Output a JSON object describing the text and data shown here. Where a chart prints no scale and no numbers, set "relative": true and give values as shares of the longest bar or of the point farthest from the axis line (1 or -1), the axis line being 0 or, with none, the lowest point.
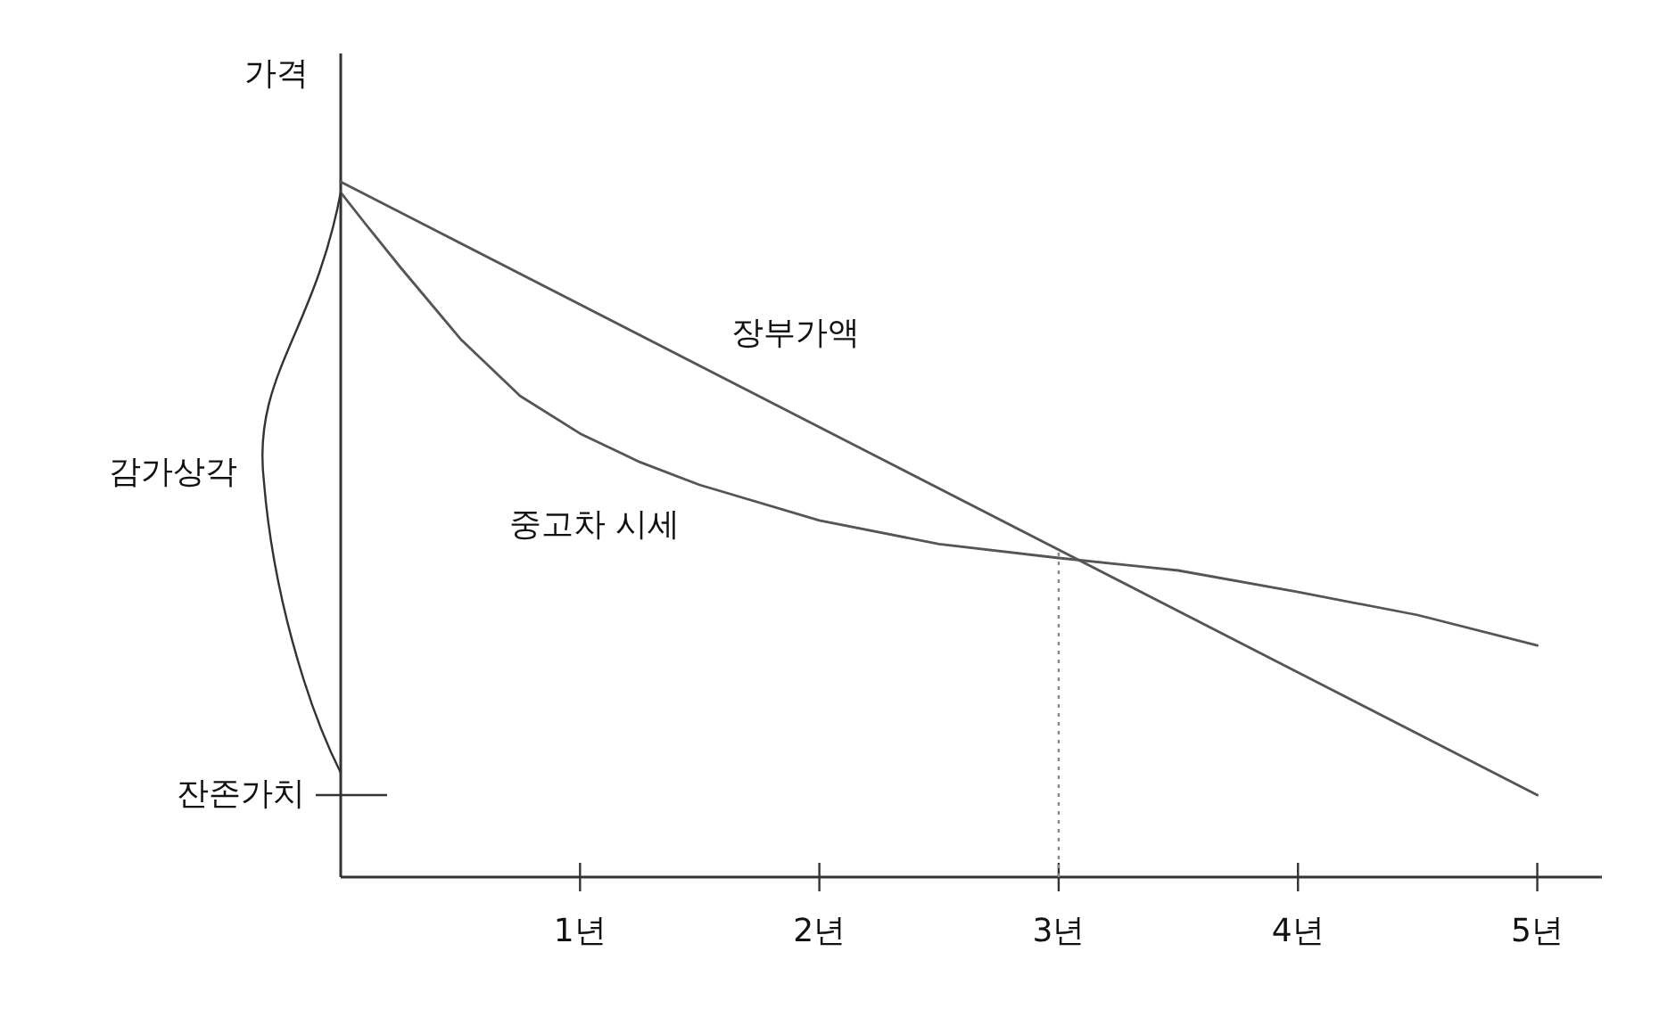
{
  "chart_data": {
    "type": "line",
    "relative": true,
    "ylabel": "가격",
    "marker": "none",
    "line_style": "solid",
    "xlim": [
      0,
      5.27
    ],
    "xticks": [
      {
        "value": 1,
        "label": "1년"
      },
      {
        "value": 2,
        "label": "2년"
      },
      {
        "value": 3,
        "label": "3년"
      },
      {
        "value": 4,
        "label": "4년"
      },
      {
        "value": 5,
        "label": "5년"
      }
    ],
    "series": [
      {
        "name": "장부가액",
        "color": "#555555",
        "x": [
          0,
          5
        ],
        "values": [
          1.0,
          0.118
        ]
      },
      {
        "name": "중고차 시세",
        "color": "#555555",
        "x": [
          0,
          0.1,
          0.25,
          0.5,
          0.75,
          1.0,
          1.25,
          1.5,
          2.0,
          2.5,
          3.0,
          3.5,
          4.0,
          4.5,
          5.0
        ],
        "values": [
          0.985,
          0.941,
          0.877,
          0.774,
          0.692,
          0.638,
          0.597,
          0.564,
          0.513,
          0.479,
          0.459,
          0.441,
          0.41,
          0.377,
          0.333
        ]
      }
    ],
    "ref_lines": [
      {
        "axis": "x",
        "value": 3,
        "line_style": "dotted",
        "color": "#888888"
      }
    ],
    "annotations": [
      "감가상각",
      "잔존가치"
    ]
  }
}
